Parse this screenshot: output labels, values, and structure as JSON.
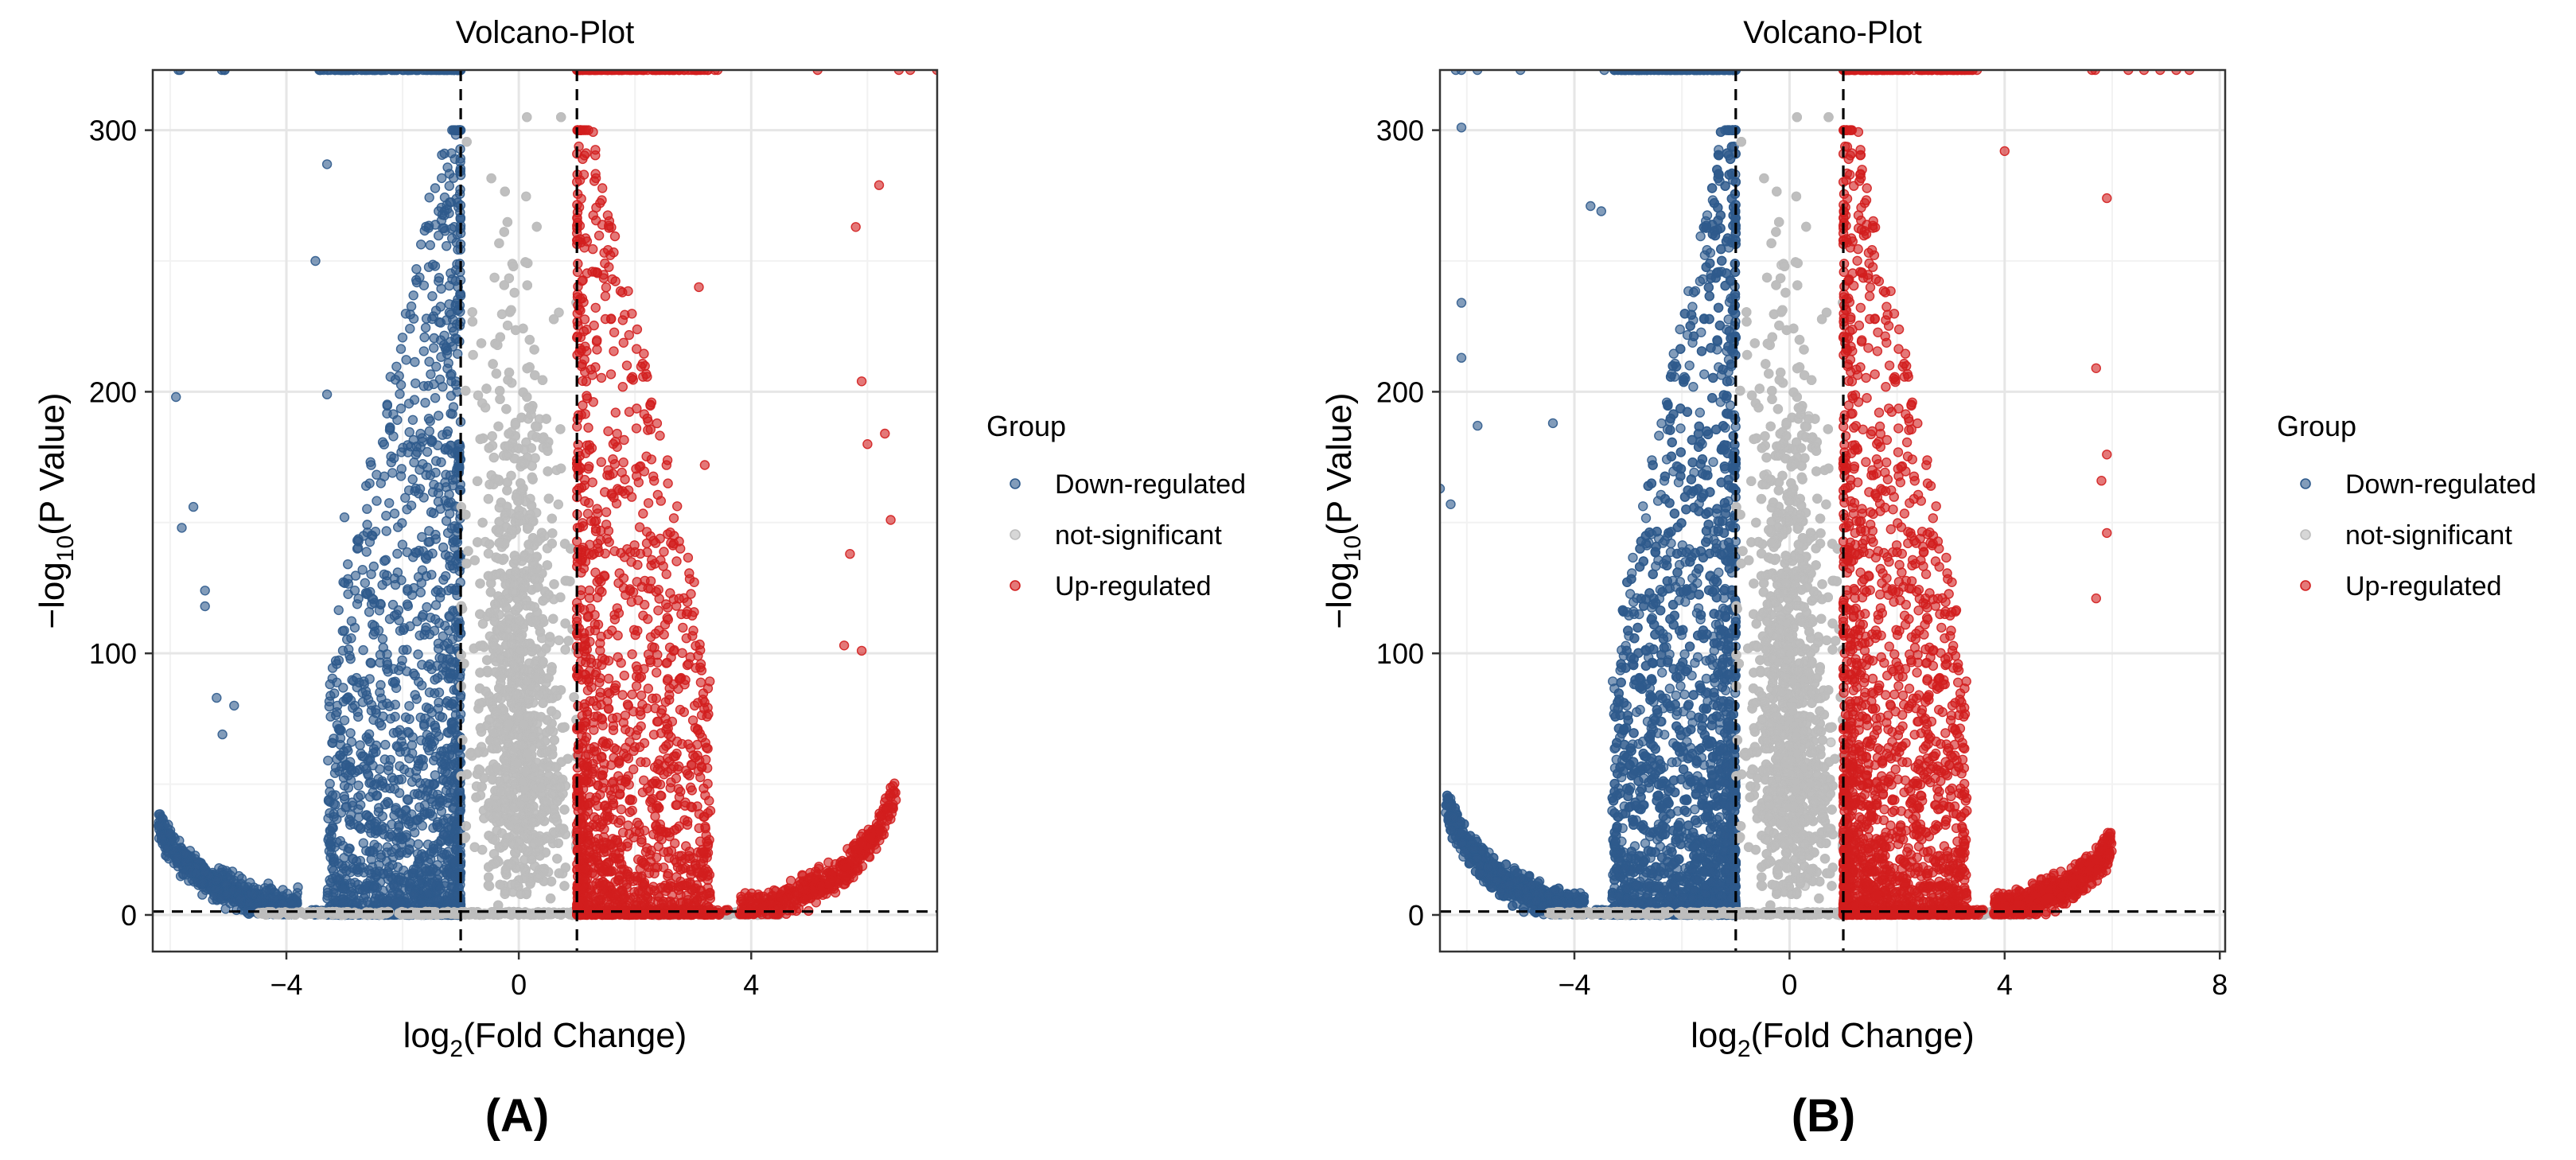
{
  "chart_data": [
    {
      "panel_label": "(A)",
      "type": "scatter",
      "title": "Volcano-Plot",
      "xlabel": "log2(Fold Change)",
      "ylabel": "−log10(P Value)",
      "xlim": [
        -6.3,
        7.2
      ],
      "ylim": [
        -14,
        323
      ],
      "x_ticks": [
        -4,
        0,
        4
      ],
      "y_ticks": [
        0,
        100,
        200,
        300
      ],
      "thresholds": {
        "x": [
          -1,
          1
        ],
        "y": 1.3
      },
      "grid": true,
      "legend": {
        "title": "Group",
        "position": "right",
        "entries": [
          "Down-regulated",
          "not-significant",
          "Up-regulated"
        ]
      },
      "series": [
        {
          "name": "Down-regulated",
          "color": "#2E5A8C",
          "x_range": [
            -6.2,
            -1.0
          ],
          "y_range": [
            0,
            323
          ],
          "approx_count": 2600,
          "outliers": [
            [
              -5.9,
              198
            ],
            [
              -5.8,
              148
            ],
            [
              -5.6,
              156
            ],
            [
              -5.4,
              124
            ],
            [
              -5.4,
              118
            ],
            [
              -5.2,
              83
            ],
            [
              -5.1,
              69
            ],
            [
              -4.9,
              80
            ],
            [
              -3.5,
              250
            ],
            [
              -3.3,
              199
            ],
            [
              -3.3,
              287
            ],
            [
              -3.0,
              152
            ]
          ]
        },
        {
          "name": "not-significant",
          "color": "#BDBDBD",
          "x_range": [
            -4.5,
            4.5
          ],
          "y_range": [
            0,
            308
          ],
          "approx_count": 4200
        },
        {
          "name": "Up-regulated",
          "color": "#D21E1E",
          "x_range": [
            1.0,
            6.5
          ],
          "y_range": [
            0,
            323
          ],
          "approx_count": 2200,
          "outliers": [
            [
              3.1,
              240
            ],
            [
              3.2,
              172
            ],
            [
              5.8,
              263
            ],
            [
              5.9,
              204
            ],
            [
              6.0,
              180
            ],
            [
              6.2,
              279
            ],
            [
              6.3,
              184
            ],
            [
              6.4,
              151
            ],
            [
              5.7,
              138
            ],
            [
              5.6,
              103
            ],
            [
              5.9,
              101
            ]
          ]
        }
      ]
    },
    {
      "panel_label": "(B)",
      "type": "scatter",
      "title": "Volcano-Plot",
      "xlabel": "log2(Fold Change)",
      "ylabel": "−log10(P Value)",
      "xlim": [
        -6.5,
        8.1
      ],
      "ylim": [
        -14,
        323
      ],
      "x_ticks": [
        -4,
        0,
        4,
        8
      ],
      "y_ticks": [
        0,
        100,
        200,
        300
      ],
      "thresholds": {
        "x": [
          -1,
          1
        ],
        "y": 1.3
      },
      "grid": true,
      "legend": {
        "title": "Group",
        "position": "right",
        "entries": [
          "Down-regulated",
          "not-significant",
          "Up-regulated"
        ]
      },
      "series": [
        {
          "name": "Down-regulated",
          "color": "#2E5A8C",
          "x_range": [
            -6.4,
            -1.0
          ],
          "y_range": [
            0,
            323
          ],
          "approx_count": 4200,
          "outliers": [
            [
              -6.5,
              163
            ],
            [
              -6.3,
              157
            ],
            [
              -6.1,
              301
            ],
            [
              -6.1,
              234
            ],
            [
              -6.1,
              213
            ],
            [
              -5.8,
              187
            ],
            [
              -4.4,
              188
            ],
            [
              -3.7,
              271
            ],
            [
              -3.5,
              269
            ]
          ]
        },
        {
          "name": "not-significant",
          "color": "#BDBDBD",
          "x_range": [
            -4.6,
            4.6
          ],
          "y_range": [
            0,
            308
          ],
          "approx_count": 5200
        },
        {
          "name": "Up-regulated",
          "color": "#D21E1E",
          "x_range": [
            1.0,
            6.0
          ],
          "y_range": [
            0,
            323
          ],
          "approx_count": 2600,
          "outliers": [
            [
              4.0,
              292
            ],
            [
              5.9,
              274
            ],
            [
              5.7,
              209
            ],
            [
              5.9,
              176
            ],
            [
              5.8,
              166
            ],
            [
              5.9,
              146
            ],
            [
              5.7,
              121
            ]
          ]
        }
      ]
    }
  ]
}
